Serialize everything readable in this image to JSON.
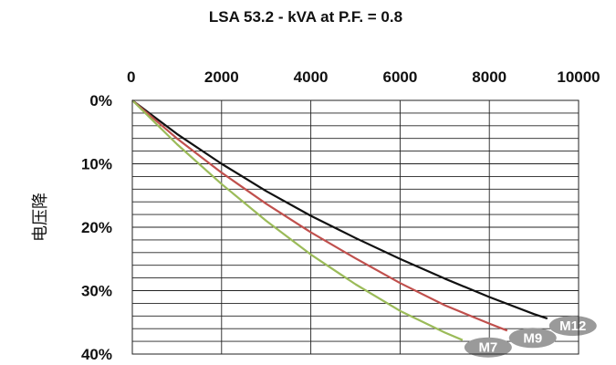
{
  "chart_data": {
    "type": "line",
    "title": "LSA 53.2 - kVA at P.F. = 0.8",
    "ylabel": "电压降",
    "xlabel": "",
    "x_axis_position": "top",
    "y_axis_inverted": true,
    "xlim": [
      0,
      10000
    ],
    "ylim": [
      0,
      40
    ],
    "x_ticks": [
      "0",
      "2000",
      "4000",
      "6000",
      "8000",
      "10000"
    ],
    "y_ticks": [
      "0%",
      "10%",
      "20%",
      "30%",
      "40%"
    ],
    "y_minor_step": 2,
    "grid": true,
    "series": [
      {
        "name": "M12",
        "color": "#111111",
        "x": [
          0,
          1000,
          2000,
          3000,
          4000,
          5000,
          6000,
          7000,
          8000,
          9000,
          9300
        ],
        "y": [
          0,
          5.3,
          10.0,
          14.3,
          18.2,
          21.7,
          25.0,
          28.1,
          31.0,
          33.7,
          34.4
        ]
      },
      {
        "name": "M9",
        "color": "#c0504d",
        "x": [
          0,
          1000,
          2000,
          3000,
          4000,
          5000,
          6000,
          7000,
          8000,
          8400
        ],
        "y": [
          0,
          6.0,
          11.4,
          16.3,
          20.8,
          24.9,
          28.8,
          32.3,
          35.2,
          36.3
        ]
      },
      {
        "name": "M7",
        "color": "#9bbb59",
        "x": [
          0,
          1000,
          2000,
          3000,
          4000,
          5000,
          6000,
          7000,
          7400
        ],
        "y": [
          0,
          6.9,
          13.2,
          19.0,
          24.3,
          29.0,
          33.2,
          36.6,
          37.8
        ]
      }
    ]
  }
}
